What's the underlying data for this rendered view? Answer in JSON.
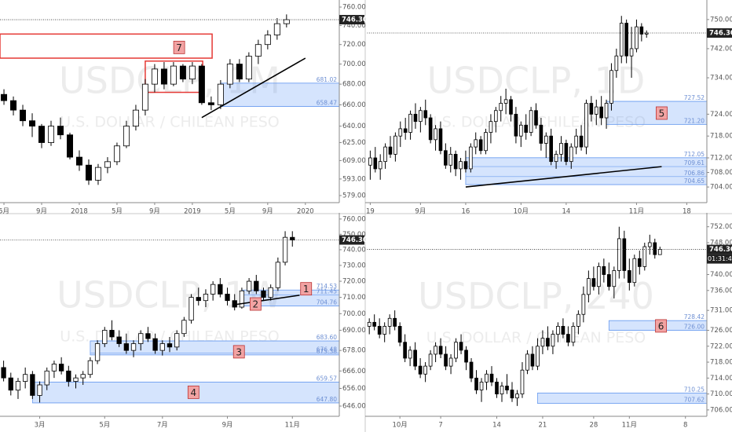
{
  "chart_data": [
    {
      "type": "candlestick",
      "title": "USDCLP, 1M",
      "subtitle": "U.S. DOLLAR / CHILEAN PESO",
      "log_scale": true,
      "up_color": "#ffffff",
      "down_color": "#000000",
      "open": [
        670,
        664,
        655,
        645,
        640,
        625,
        640,
        632,
        612,
        605,
        592,
        603,
        608,
        622,
        640,
        655,
        680,
        695,
        680,
        698,
        685,
        698,
        662,
        660,
        680,
        700,
        685,
        708,
        720,
        730,
        742
      ],
      "high": [
        675,
        668,
        660,
        652,
        642,
        645,
        648,
        634,
        618,
        610,
        606,
        612,
        625,
        645,
        660,
        685,
        700,
        702,
        702,
        700,
        702,
        700,
        668,
        684,
        705,
        705,
        712,
        725,
        735,
        748,
        752
      ],
      "low": [
        660,
        650,
        640,
        630,
        620,
        622,
        628,
        610,
        600,
        588,
        588,
        598,
        605,
        620,
        636,
        650,
        672,
        675,
        678,
        682,
        680,
        660,
        655,
        656,
        676,
        682,
        682,
        700,
        715,
        725,
        738
      ],
      "close": [
        664,
        655,
        645,
        640,
        625,
        640,
        632,
        612,
        605,
        592,
        603,
        608,
        622,
        640,
        655,
        680,
        695,
        680,
        698,
        685,
        698,
        662,
        660,
        680,
        700,
        685,
        708,
        720,
        730,
        742,
        746.3
      ],
      "xlim": [
        -0.42,
        35.6
      ],
      "xticks": [
        {
          "value": 0,
          "label": "5月"
        },
        {
          "value": 4,
          "label": "9月"
        },
        {
          "value": 8,
          "label": "2018"
        },
        {
          "value": 12,
          "label": "5月"
        },
        {
          "value": 16,
          "label": "9月"
        },
        {
          "value": 20,
          "label": "2019"
        },
        {
          "value": 24,
          "label": "5月"
        },
        {
          "value": 28,
          "label": "9月"
        },
        {
          "value": 32,
          "label": "2020"
        }
      ],
      "ylim": [
        574.4,
        767.8
      ],
      "yticks": [
        {
          "value": 760,
          "label": "760.00"
        },
        {
          "value": 740,
          "label": "740.00"
        },
        {
          "value": 720,
          "label": "720.00"
        },
        {
          "value": 700,
          "label": "700.00"
        },
        {
          "value": 680,
          "label": "680.00"
        },
        {
          "value": 660,
          "label": "660.00"
        },
        {
          "value": 640,
          "label": "640.00"
        },
        {
          "value": 625,
          "label": "625.00"
        },
        {
          "value": 609,
          "label": "609.00"
        },
        {
          "value": 593,
          "label": "593.00"
        },
        {
          "value": 579,
          "label": "579.00"
        }
      ],
      "last_price": {
        "value": 746.3,
        "label": "746.30"
      },
      "zones": [
        {
          "from": 23,
          "levels": [
            681.02,
            658.47
          ]
        }
      ],
      "trend_lines": [
        {
          "x": [
            21,
            32
          ],
          "y": [
            648,
            706
          ]
        }
      ],
      "box_color": "#e53935",
      "boxes": [
        {
          "x": [
            -0.42,
            22.1
          ],
          "y": [
            706,
            731
          ]
        },
        {
          "x": [
            15,
            21.1
          ],
          "y": [
            672,
            703
          ]
        }
      ],
      "markers": [
        {
          "label": "7",
          "x": 18.6,
          "y": 717
        }
      ]
    },
    {
      "type": "candlestick",
      "title": "USDCLP, 1D",
      "subtitle": "U.S. DOLLAR / CHILEAN PESO",
      "log_scale": false,
      "up_color": "#ffffff",
      "down_color": "#000000",
      "open": [
        710,
        712,
        709,
        711,
        715,
        713,
        718,
        720,
        719,
        724,
        722,
        725,
        723,
        717,
        720,
        714,
        710,
        713,
        709,
        711,
        709,
        715,
        717,
        714,
        719,
        722,
        725,
        727,
        728,
        724,
        718,
        721,
        719,
        725,
        721,
        716,
        718,
        711,
        713,
        716,
        711,
        715,
        718,
        715,
        727,
        724,
        726,
        723,
        727,
        736,
        740,
        749,
        740,
        742,
        748,
        746
      ],
      "high": [
        714,
        715,
        713,
        716,
        718,
        719,
        722,
        723,
        725,
        727,
        726,
        728,
        724,
        721,
        722,
        716,
        715,
        714,
        712,
        714,
        716,
        719,
        718,
        720,
        724,
        726,
        729,
        731,
        729,
        726,
        722,
        724,
        726,
        727,
        723,
        719,
        720,
        714,
        718,
        717,
        716,
        720,
        721,
        728,
        729,
        728,
        729,
        728,
        738,
        742,
        751,
        750,
        748,
        750,
        749,
        747
      ],
      "low": [
        706,
        708,
        706,
        709,
        712,
        711,
        715,
        717,
        717,
        720,
        719,
        721,
        716,
        714,
        713,
        709,
        708,
        707,
        706,
        708,
        708,
        713,
        713,
        713,
        716,
        719,
        722,
        724,
        722,
        716,
        715,
        717,
        718,
        720,
        714,
        712,
        710,
        709,
        711,
        710,
        709,
        713,
        714,
        713,
        722,
        721,
        721,
        720,
        725,
        734,
        738,
        738,
        734,
        741,
        744,
        745
      ],
      "close": [
        712,
        709,
        711,
        715,
        713,
        718,
        720,
        719,
        724,
        722,
        725,
        723,
        717,
        720,
        714,
        710,
        713,
        709,
        711,
        709,
        715,
        717,
        714,
        719,
        722,
        725,
        727,
        728,
        724,
        718,
        721,
        719,
        725,
        721,
        716,
        718,
        711,
        713,
        716,
        711,
        715,
        718,
        715,
        727,
        724,
        726,
        723,
        727,
        736,
        740,
        749,
        740,
        742,
        748,
        746,
        746.3
      ],
      "xlim": [
        -1,
        67
      ],
      "xticks": [
        {
          "value": 0,
          "label": "19"
        },
        {
          "value": 10,
          "label": "9月"
        },
        {
          "value": 19,
          "label": "16"
        },
        {
          "value": 30,
          "label": "10月"
        },
        {
          "value": 39,
          "label": "14"
        },
        {
          "value": 53,
          "label": "11月"
        },
        {
          "value": 63,
          "label": "18"
        }
      ],
      "ylim": [
        701,
        754.5
      ],
      "yticks": [
        {
          "value": 750,
          "label": "750.00"
        },
        {
          "value": 742,
          "label": "742.00"
        },
        {
          "value": 734,
          "label": "734.00"
        },
        {
          "value": 724,
          "label": "724.00"
        },
        {
          "value": 718,
          "label": "718.00"
        },
        {
          "value": 712,
          "label": "712.00"
        },
        {
          "value": 708,
          "label": "708.00"
        },
        {
          "value": 704,
          "label": "704.00"
        }
      ],
      "last_price": {
        "value": 746.3,
        "label": "746.30"
      },
      "zones": [
        {
          "from": 47,
          "levels": [
            727.52,
            {
              "value": 721.2,
              "label": "721.20"
            }
          ]
        },
        {
          "from": 19,
          "levels": [
            712.05,
            709.61,
            706.86,
            704.65
          ]
        }
      ],
      "trend_lines": [
        {
          "x": [
            19,
            58
          ],
          "y": [
            704,
            709.6
          ]
        }
      ],
      "markers": [
        {
          "label": "5",
          "x": 58,
          "y": 724.3
        }
      ]
    },
    {
      "type": "candlestick",
      "title": "USDCLP, 1W",
      "subtitle": "U.S. DOLLAR / CHILEAN PESO",
      "log_scale": true,
      "up_color": "#ffffff",
      "down_color": "#000000",
      "open": [
        668,
        662,
        655,
        660,
        664,
        652,
        658,
        666,
        670,
        666,
        660,
        662,
        664,
        672,
        682,
        690,
        686,
        682,
        678,
        682,
        688,
        685,
        678,
        682,
        680,
        688,
        696,
        710,
        708,
        712,
        718,
        712,
        708,
        704,
        714,
        720,
        714,
        710,
        716,
        732,
        748
      ],
      "high": [
        672,
        665,
        662,
        668,
        666,
        660,
        668,
        672,
        674,
        669,
        664,
        666,
        674,
        684,
        692,
        696,
        690,
        688,
        684,
        690,
        692,
        688,
        684,
        686,
        690,
        698,
        712,
        716,
        715,
        720,
        722,
        716,
        712,
        716,
        722,
        724,
        716,
        718,
        735,
        752,
        752
      ],
      "low": [
        660,
        652,
        650,
        656,
        650,
        648,
        655,
        662,
        664,
        657,
        656,
        658,
        662,
        670,
        680,
        684,
        680,
        676,
        674,
        678,
        683,
        676,
        675,
        677,
        678,
        686,
        694,
        705,
        704,
        708,
        710,
        705,
        702,
        703,
        712,
        712,
        708,
        708,
        714,
        730,
        742
      ],
      "close": [
        662,
        655,
        660,
        664,
        652,
        658,
        666,
        670,
        666,
        660,
        662,
        664,
        672,
        682,
        690,
        686,
        682,
        678,
        682,
        688,
        685,
        678,
        682,
        680,
        688,
        696,
        710,
        708,
        712,
        718,
        712,
        708,
        704,
        714,
        720,
        714,
        710,
        716,
        732,
        748,
        746.3
      ],
      "xlim": [
        -0.5,
        46.5
      ],
      "xticks": [
        {
          "value": 5,
          "label": "3月"
        },
        {
          "value": 14,
          "label": "5月"
        },
        {
          "value": 22,
          "label": "7月"
        },
        {
          "value": 31,
          "label": "9月"
        },
        {
          "value": 40,
          "label": "11月"
        }
      ],
      "ylim": [
        641.6,
        762
      ],
      "yticks": [
        {
          "value": 760,
          "label": "760.00"
        },
        {
          "value": 750,
          "label": "750.00"
        },
        {
          "value": 740,
          "label": "740.00"
        },
        {
          "value": 730,
          "label": "730.00"
        },
        {
          "value": 720,
          "label": "720.00"
        },
        {
          "value": 710,
          "label": "710.00"
        },
        {
          "value": 700,
          "label": "700.00"
        },
        {
          "value": 690,
          "label": "690.00"
        },
        {
          "value": 678,
          "label": "678.00"
        },
        {
          "value": 666,
          "label": "666.00"
        },
        {
          "value": 656,
          "label": "656.00"
        },
        {
          "value": 646,
          "label": "646.00"
        }
      ],
      "last_price": {
        "value": 746.3,
        "label": "746.30"
      },
      "zones": [
        {
          "from": 33,
          "levels": [
            714.53,
            711.45,
            704.76
          ]
        },
        {
          "from": 12,
          "levels": [
            {
              "value": 683.6,
              "label": "683.60"
            },
            676.48,
            675.38
          ]
        },
        {
          "from": 4,
          "levels": [
            659.57,
            {
              "value": 647.8,
              "label": "647.80"
            }
          ]
        }
      ],
      "trend_lines": [
        {
          "x": [
            32,
            41
          ],
          "y": [
            705.5,
            711.3
          ]
        }
      ],
      "markers": [
        {
          "label": "1",
          "x": 41.9,
          "y": 715.3
        },
        {
          "label": "2",
          "x": 34.9,
          "y": 705.9
        },
        {
          "label": "3",
          "x": 32.6,
          "y": 677.2
        },
        {
          "label": "4",
          "x": 26.3,
          "y": 653.8
        }
      ]
    },
    {
      "type": "candlestick",
      "title": "USDCLP, 240",
      "subtitle": "U.S. DOLLAR / CHILEAN PESO",
      "log_scale": false,
      "up_color": "#ffffff",
      "down_color": "#000000",
      "open": [
        727,
        728,
        727,
        725,
        727,
        729,
        727,
        723,
        719,
        721,
        717,
        715,
        717,
        720,
        722,
        720,
        717,
        719,
        723,
        721,
        718,
        714,
        711,
        713,
        715,
        713,
        710,
        712,
        711,
        709,
        710,
        716,
        720,
        717,
        722,
        724,
        722,
        725,
        727,
        725,
        723,
        727,
        730,
        735,
        739,
        737,
        742,
        740,
        737,
        741,
        749,
        741,
        738,
        744,
        742,
        747,
        748,
        745
      ],
      "high": [
        729,
        730,
        729,
        728,
        730,
        731,
        728,
        725,
        722,
        723,
        719,
        718,
        721,
        723,
        724,
        722,
        720,
        724,
        725,
        722,
        719,
        716,
        714,
        716,
        717,
        714,
        713,
        715,
        713,
        711,
        718,
        721,
        722,
        724,
        726,
        727,
        726,
        728,
        729,
        727,
        728,
        731,
        737,
        741,
        742,
        743,
        744,
        743,
        742,
        752,
        751,
        744,
        745,
        746,
        748,
        750,
        749,
        747
      ],
      "low": [
        725,
        726,
        724,
        723,
        725,
        726,
        722,
        718,
        717,
        716,
        714,
        713,
        716,
        718,
        719,
        716,
        715,
        718,
        720,
        716,
        713,
        710,
        708,
        711,
        712,
        709,
        708,
        710,
        708,
        707,
        709,
        715,
        716,
        716,
        720,
        721,
        720,
        723,
        724,
        722,
        722,
        725,
        728,
        733,
        736,
        735,
        738,
        736,
        734,
        739,
        739,
        736,
        737,
        740,
        741,
        745,
        744,
        745
      ],
      "close": [
        728,
        727,
        725,
        727,
        729,
        727,
        723,
        719,
        721,
        717,
        715,
        717,
        720,
        722,
        720,
        717,
        719,
        723,
        721,
        718,
        714,
        711,
        713,
        715,
        713,
        710,
        712,
        711,
        709,
        710,
        716,
        720,
        717,
        722,
        724,
        722,
        725,
        727,
        725,
        723,
        727,
        730,
        735,
        739,
        737,
        742,
        740,
        737,
        741,
        749,
        741,
        738,
        744,
        742,
        747,
        748,
        745,
        746.3
      ],
      "xlim": [
        -0.8,
        66.2
      ],
      "xticks": [
        {
          "value": 6,
          "label": "10月"
        },
        {
          "value": 14,
          "label": "7"
        },
        {
          "value": 25,
          "label": "14"
        },
        {
          "value": 34,
          "label": "21"
        },
        {
          "value": 44,
          "label": "28"
        },
        {
          "value": 51,
          "label": "11月"
        },
        {
          "value": 62,
          "label": "8"
        }
      ],
      "ylim": [
        704.4,
        754.7
      ],
      "yticks": [
        {
          "value": 752,
          "label": "752.00"
        },
        {
          "value": 748,
          "label": "748.00"
        },
        {
          "value": 744,
          "label": "744.00"
        },
        {
          "value": 740,
          "label": "740.00"
        },
        {
          "value": 736,
          "label": "736.00"
        },
        {
          "value": 731,
          "label": "731.00"
        },
        {
          "value": 726,
          "label": "726.00"
        },
        {
          "value": 722,
          "label": "722.00"
        },
        {
          "value": 718,
          "label": "718.00"
        },
        {
          "value": 714,
          "label": "714.00"
        },
        {
          "value": 710,
          "label": "710.00"
        },
        {
          "value": 706,
          "label": "706.00"
        }
      ],
      "last_price": {
        "value": 746.3,
        "label": "746.30"
      },
      "countdown": "01:31:44",
      "zones": [
        {
          "from": 47,
          "levels": [
            728.42,
            {
              "value": 726,
              "label": "726.00"
            }
          ]
        },
        {
          "from": 33,
          "levels": [
            710.25,
            707.62
          ]
        }
      ],
      "markers": [
        {
          "label": "6",
          "x": 57.2,
          "y": 727.1
        }
      ]
    }
  ]
}
